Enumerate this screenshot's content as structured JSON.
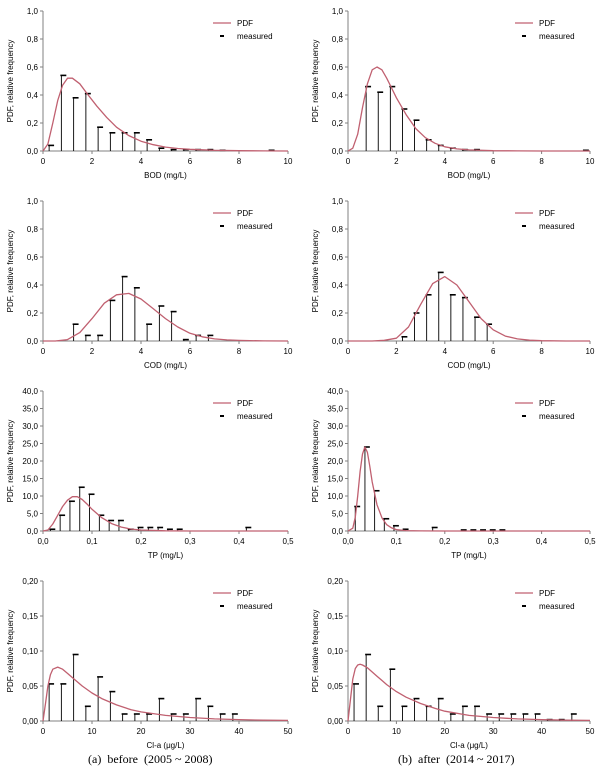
{
  "captions": {
    "a": "(a)  before  (2005 ~ 2008)",
    "b": "(b)  after  (2014 ~ 2017)"
  },
  "colors": {
    "pdf": "#c06070",
    "measured": "#000000",
    "axis": "#808080"
  },
  "chart_data": [
    {
      "type": "line",
      "id": "bod-before",
      "xlabel": "BOD (mg/L)",
      "ylabel": "PDF, relative frequency",
      "xlim": [
        0,
        10
      ],
      "ylim": [
        0,
        1.0
      ],
      "xticks": [
        0,
        2,
        4,
        6,
        8,
        10
      ],
      "xtick_labels": [
        "0",
        "2",
        "4",
        "6",
        "8",
        "10"
      ],
      "yticks": [
        0,
        0.2,
        0.4,
        0.6,
        0.8,
        1.0
      ],
      "ytick_labels": [
        "0,0",
        "0,2",
        "0,4",
        "0,6",
        "0,8",
        "1,0"
      ],
      "legend": [
        "PDF",
        "measured"
      ],
      "pdf": {
        "x": [
          0.0,
          0.2,
          0.4,
          0.6,
          0.8,
          1.0,
          1.2,
          1.5,
          1.8,
          2.2,
          2.6,
          3.0,
          3.5,
          4.0,
          4.5,
          5.0,
          5.5,
          6.0,
          7.0,
          8.0,
          9.0,
          10.0
        ],
        "y": [
          0.0,
          0.05,
          0.2,
          0.36,
          0.47,
          0.52,
          0.52,
          0.48,
          0.41,
          0.32,
          0.24,
          0.17,
          0.11,
          0.07,
          0.045,
          0.028,
          0.018,
          0.012,
          0.005,
          0.002,
          0.001,
          0.0
        ]
      },
      "measured": {
        "x": [
          0.25,
          0.75,
          1.25,
          1.75,
          2.25,
          2.75,
          3.25,
          3.75,
          4.25,
          4.75,
          5.25,
          5.75,
          6.25,
          6.75,
          7.25,
          9.25
        ],
        "y": [
          0.04,
          0.54,
          0.38,
          0.41,
          0.17,
          0.13,
          0.13,
          0.13,
          0.08,
          0.02,
          0.01,
          0.01,
          0.01,
          0.01,
          0.005,
          0.005
        ]
      }
    },
    {
      "type": "line",
      "id": "bod-after",
      "xlabel": "BOD (mg/L)",
      "ylabel": "PDF, relative frequency",
      "xlim": [
        0,
        10
      ],
      "ylim": [
        0,
        1.0
      ],
      "xticks": [
        0,
        2,
        4,
        6,
        8,
        10
      ],
      "xtick_labels": [
        "0",
        "2",
        "4",
        "6",
        "8",
        "10"
      ],
      "yticks": [
        0,
        0.2,
        0.4,
        0.6,
        0.8,
        1.0
      ],
      "ytick_labels": [
        "0,0",
        "0,2",
        "0,4",
        "0,6",
        "0,8",
        "1,0"
      ],
      "legend": [
        "PDF",
        "measured"
      ],
      "pdf": {
        "x": [
          0.0,
          0.2,
          0.4,
          0.6,
          0.8,
          1.0,
          1.2,
          1.4,
          1.6,
          1.8,
          2.0,
          2.4,
          2.8,
          3.2,
          3.6,
          4.0,
          4.5,
          5.0,
          6.0,
          7.0,
          8.0,
          10.0
        ],
        "y": [
          0.0,
          0.02,
          0.12,
          0.31,
          0.48,
          0.58,
          0.6,
          0.58,
          0.52,
          0.45,
          0.38,
          0.26,
          0.16,
          0.095,
          0.055,
          0.03,
          0.015,
          0.008,
          0.002,
          0.001,
          0.0,
          0.0
        ]
      },
      "measured": {
        "x": [
          0.75,
          1.25,
          1.75,
          2.25,
          2.75,
          3.25,
          3.75,
          4.25,
          4.75,
          5.25,
          9.75
        ],
        "y": [
          0.46,
          0.42,
          0.46,
          0.3,
          0.22,
          0.08,
          0.04,
          0.02,
          0.01,
          0.01,
          0.005
        ]
      }
    },
    {
      "type": "line",
      "id": "cod-before",
      "xlabel": "COD (mg/L)",
      "ylabel": "PDF, relative frequency",
      "xlim": [
        0,
        10
      ],
      "ylim": [
        0,
        1.0
      ],
      "xticks": [
        0,
        2,
        4,
        6,
        8,
        10
      ],
      "xtick_labels": [
        "0",
        "2",
        "4",
        "6",
        "8",
        "10"
      ],
      "yticks": [
        0,
        0.2,
        0.4,
        0.6,
        0.8,
        1.0
      ],
      "ytick_labels": [
        "0,0",
        "0,2",
        "0,4",
        "0,6",
        "0,8",
        "1,0"
      ],
      "legend": [
        "PDF",
        "measured"
      ],
      "pdf": {
        "x": [
          0.0,
          0.5,
          1.0,
          1.5,
          2.0,
          2.5,
          3.0,
          3.5,
          4.0,
          4.5,
          5.0,
          5.5,
          6.0,
          6.5,
          7.0,
          7.5,
          8.0,
          9.0,
          10.0
        ],
        "y": [
          0.0,
          0.0,
          0.01,
          0.06,
          0.16,
          0.27,
          0.33,
          0.34,
          0.3,
          0.23,
          0.16,
          0.1,
          0.055,
          0.03,
          0.015,
          0.008,
          0.004,
          0.001,
          0.0
        ]
      },
      "measured": {
        "x": [
          1.25,
          1.75,
          2.25,
          2.75,
          3.25,
          3.75,
          4.25,
          4.75,
          5.25,
          5.75,
          6.25,
          6.75
        ],
        "y": [
          0.12,
          0.04,
          0.04,
          0.29,
          0.46,
          0.38,
          0.12,
          0.25,
          0.21,
          0.01,
          0.04,
          0.04
        ]
      }
    },
    {
      "type": "line",
      "id": "cod-after",
      "xlabel": "COD (mg/L)",
      "ylabel": "PDF, relative frequency",
      "xlim": [
        0,
        10
      ],
      "ylim": [
        0,
        1.0
      ],
      "xticks": [
        0,
        2,
        4,
        6,
        8,
        10
      ],
      "xtick_labels": [
        "0",
        "2",
        "4",
        "6",
        "8",
        "10"
      ],
      "yticks": [
        0,
        0.2,
        0.4,
        0.6,
        0.8,
        1.0
      ],
      "ytick_labels": [
        "0,0",
        "0,2",
        "0,4",
        "0,6",
        "0,8",
        "1,0"
      ],
      "legend": [
        "PDF",
        "measured"
      ],
      "pdf": {
        "x": [
          0.0,
          1.0,
          1.5,
          2.0,
          2.5,
          3.0,
          3.5,
          4.0,
          4.5,
          5.0,
          5.5,
          6.0,
          6.5,
          7.0,
          7.5,
          8.0,
          9.0,
          10.0
        ],
        "y": [
          0.0,
          0.0,
          0.005,
          0.02,
          0.1,
          0.26,
          0.41,
          0.46,
          0.4,
          0.28,
          0.16,
          0.08,
          0.035,
          0.015,
          0.006,
          0.002,
          0.0,
          0.0
        ]
      },
      "measured": {
        "x": [
          2.25,
          2.75,
          3.25,
          3.75,
          4.25,
          4.75,
          5.25,
          5.75
        ],
        "y": [
          0.03,
          0.2,
          0.33,
          0.49,
          0.33,
          0.31,
          0.17,
          0.12
        ]
      }
    },
    {
      "type": "line",
      "id": "tp-before",
      "xlabel": "TP (mg/L)",
      "ylabel": "PDF, relative frequency",
      "xlim": [
        0,
        0.5
      ],
      "ylim": [
        0,
        40
      ],
      "xticks": [
        0,
        0.1,
        0.2,
        0.3,
        0.4,
        0.5
      ],
      "xtick_labels": [
        "0,0",
        "0,1",
        "0,2",
        "0,3",
        "0,4",
        "0,5"
      ],
      "yticks": [
        0,
        5,
        10,
        15,
        20,
        25,
        30,
        35,
        40
      ],
      "ytick_labels": [
        "0,0",
        "5,0",
        "10,0",
        "15,0",
        "20,0",
        "25,0",
        "30,0",
        "35,0",
        "40,0"
      ],
      "legend": [
        "PDF",
        "measured"
      ],
      "pdf": {
        "x": [
          0.0,
          0.01,
          0.02,
          0.03,
          0.04,
          0.05,
          0.06,
          0.07,
          0.08,
          0.09,
          0.1,
          0.12,
          0.14,
          0.16,
          0.18,
          0.2,
          0.25,
          0.3,
          0.4,
          0.5
        ],
        "y": [
          0.0,
          0.3,
          2.0,
          4.5,
          7.0,
          8.8,
          9.8,
          9.8,
          9.0,
          7.7,
          6.2,
          3.8,
          2.1,
          1.1,
          0.55,
          0.28,
          0.05,
          0.01,
          0.0,
          0.0
        ]
      },
      "measured": {
        "x": [
          0.015,
          0.035,
          0.055,
          0.075,
          0.095,
          0.115,
          0.135,
          0.155,
          0.175,
          0.195,
          0.215,
          0.235,
          0.255,
          0.275,
          0.415
        ],
        "y": [
          0.5,
          4.5,
          8.5,
          12.5,
          10.5,
          4.5,
          3.0,
          3.0,
          0.5,
          1.0,
          1.0,
          1.0,
          0.5,
          0.5,
          1.0
        ]
      }
    },
    {
      "type": "line",
      "id": "tp-after",
      "xlabel": "TP (mg/L)",
      "ylabel": "PDF, relative frequency",
      "xlim": [
        0,
        0.5
      ],
      "ylim": [
        0,
        40
      ],
      "xticks": [
        0,
        0.1,
        0.2,
        0.3,
        0.4,
        0.5
      ],
      "xtick_labels": [
        "0,0",
        "0,1",
        "0,2",
        "0,3",
        "0,4",
        "0,5"
      ],
      "yticks": [
        0,
        5,
        10,
        15,
        20,
        25,
        30,
        35,
        40
      ],
      "ytick_labels": [
        "0,0",
        "5,0",
        "10,0",
        "15,0",
        "20,0",
        "25,0",
        "30,0",
        "35,0",
        "40,0"
      ],
      "legend": [
        "PDF",
        "measured"
      ],
      "pdf": {
        "x": [
          0.0,
          0.01,
          0.015,
          0.02,
          0.025,
          0.03,
          0.035,
          0.04,
          0.045,
          0.05,
          0.06,
          0.07,
          0.08,
          0.09,
          0.1,
          0.12,
          0.15,
          0.2,
          0.3,
          0.5
        ],
        "y": [
          0.0,
          0.8,
          4.0,
          10.0,
          17.0,
          22.0,
          24.0,
          22.5,
          18.5,
          14.0,
          7.5,
          3.8,
          1.8,
          0.9,
          0.4,
          0.1,
          0.02,
          0.0,
          0.0,
          0.0
        ]
      },
      "measured": {
        "x": [
          0.015,
          0.035,
          0.055,
          0.075,
          0.095,
          0.115,
          0.175,
          0.235,
          0.255,
          0.275,
          0.295,
          0.315
        ],
        "y": [
          7.0,
          24.0,
          11.5,
          3.5,
          1.5,
          0.5,
          1.0,
          0.3,
          0.3,
          0.3,
          0.3,
          0.3
        ]
      }
    },
    {
      "type": "line",
      "id": "chla-before",
      "xlabel": "Cl-a (μg/L)",
      "ylabel": "PDF, relative frequency",
      "xlim": [
        0,
        50
      ],
      "ylim": [
        0,
        0.2
      ],
      "xticks": [
        0,
        10,
        20,
        30,
        40,
        50
      ],
      "xtick_labels": [
        "0",
        "10",
        "20",
        "30",
        "40",
        "50"
      ],
      "yticks": [
        0,
        0.05,
        0.1,
        0.15,
        0.2
      ],
      "ytick_labels": [
        "0,00",
        "0,05",
        "0,10",
        "0,15",
        "0,20"
      ],
      "legend": [
        "PDF",
        "measured"
      ],
      "pdf": {
        "x": [
          0.0,
          0.5,
          1.0,
          1.5,
          2.0,
          3.0,
          4.0,
          5.0,
          6.0,
          8.0,
          10.0,
          12.0,
          15.0,
          18.0,
          20.0,
          25.0,
          30.0,
          35.0,
          40.0,
          45.0,
          50.0
        ],
        "y": [
          0.0,
          0.025,
          0.05,
          0.066,
          0.074,
          0.077,
          0.074,
          0.068,
          0.062,
          0.05,
          0.04,
          0.032,
          0.023,
          0.016,
          0.013,
          0.008,
          0.005,
          0.003,
          0.002,
          0.0012,
          0.0008
        ]
      },
      "measured": {
        "x": [
          1.25,
          3.75,
          6.25,
          8.75,
          11.25,
          13.75,
          16.25,
          18.75,
          21.25,
          23.75,
          26.25,
          28.75,
          31.25,
          33.75,
          36.25,
          38.75
        ],
        "y": [
          0.053,
          0.053,
          0.095,
          0.021,
          0.063,
          0.042,
          0.01,
          0.01,
          0.01,
          0.032,
          0.01,
          0.01,
          0.032,
          0.021,
          0.01,
          0.01
        ]
      }
    },
    {
      "type": "line",
      "id": "chla-after",
      "xlabel": "Cl-a (μg/L)",
      "ylabel": "PDF, relative frequency",
      "xlim": [
        0,
        50
      ],
      "ylim": [
        0,
        0.2
      ],
      "xticks": [
        0,
        10,
        20,
        30,
        40,
        50
      ],
      "xtick_labels": [
        "0",
        "10",
        "20",
        "30",
        "40",
        "50"
      ],
      "yticks": [
        0,
        0.05,
        0.1,
        0.15,
        0.2
      ],
      "ytick_labels": [
        "0,00",
        "0,05",
        "0,10",
        "0,15",
        "0,20"
      ],
      "legend": [
        "PDF",
        "measured"
      ],
      "pdf": {
        "x": [
          0.0,
          0.5,
          1.0,
          1.5,
          2.0,
          2.5,
          3.0,
          4.0,
          5.0,
          6.0,
          8.0,
          10.0,
          12.0,
          15.0,
          18.0,
          20.0,
          25.0,
          30.0,
          35.0,
          40.0,
          45.0,
          50.0
        ],
        "y": [
          0.0,
          0.03,
          0.06,
          0.075,
          0.08,
          0.081,
          0.08,
          0.076,
          0.07,
          0.064,
          0.052,
          0.042,
          0.034,
          0.025,
          0.018,
          0.014,
          0.008,
          0.005,
          0.003,
          0.002,
          0.0012,
          0.0008
        ]
      },
      "measured": {
        "x": [
          1.25,
          3.75,
          6.25,
          8.75,
          11.25,
          13.75,
          16.25,
          18.75,
          21.25,
          23.75,
          26.25,
          28.75,
          31.25,
          33.75,
          36.25,
          38.75,
          41.25,
          43.75,
          46.25
        ],
        "y": [
          0.053,
          0.095,
          0.021,
          0.074,
          0.021,
          0.032,
          0.021,
          0.032,
          0.01,
          0.021,
          0.021,
          0.01,
          0.01,
          0.01,
          0.01,
          0.01,
          0.002,
          0.002,
          0.01
        ]
      }
    }
  ]
}
